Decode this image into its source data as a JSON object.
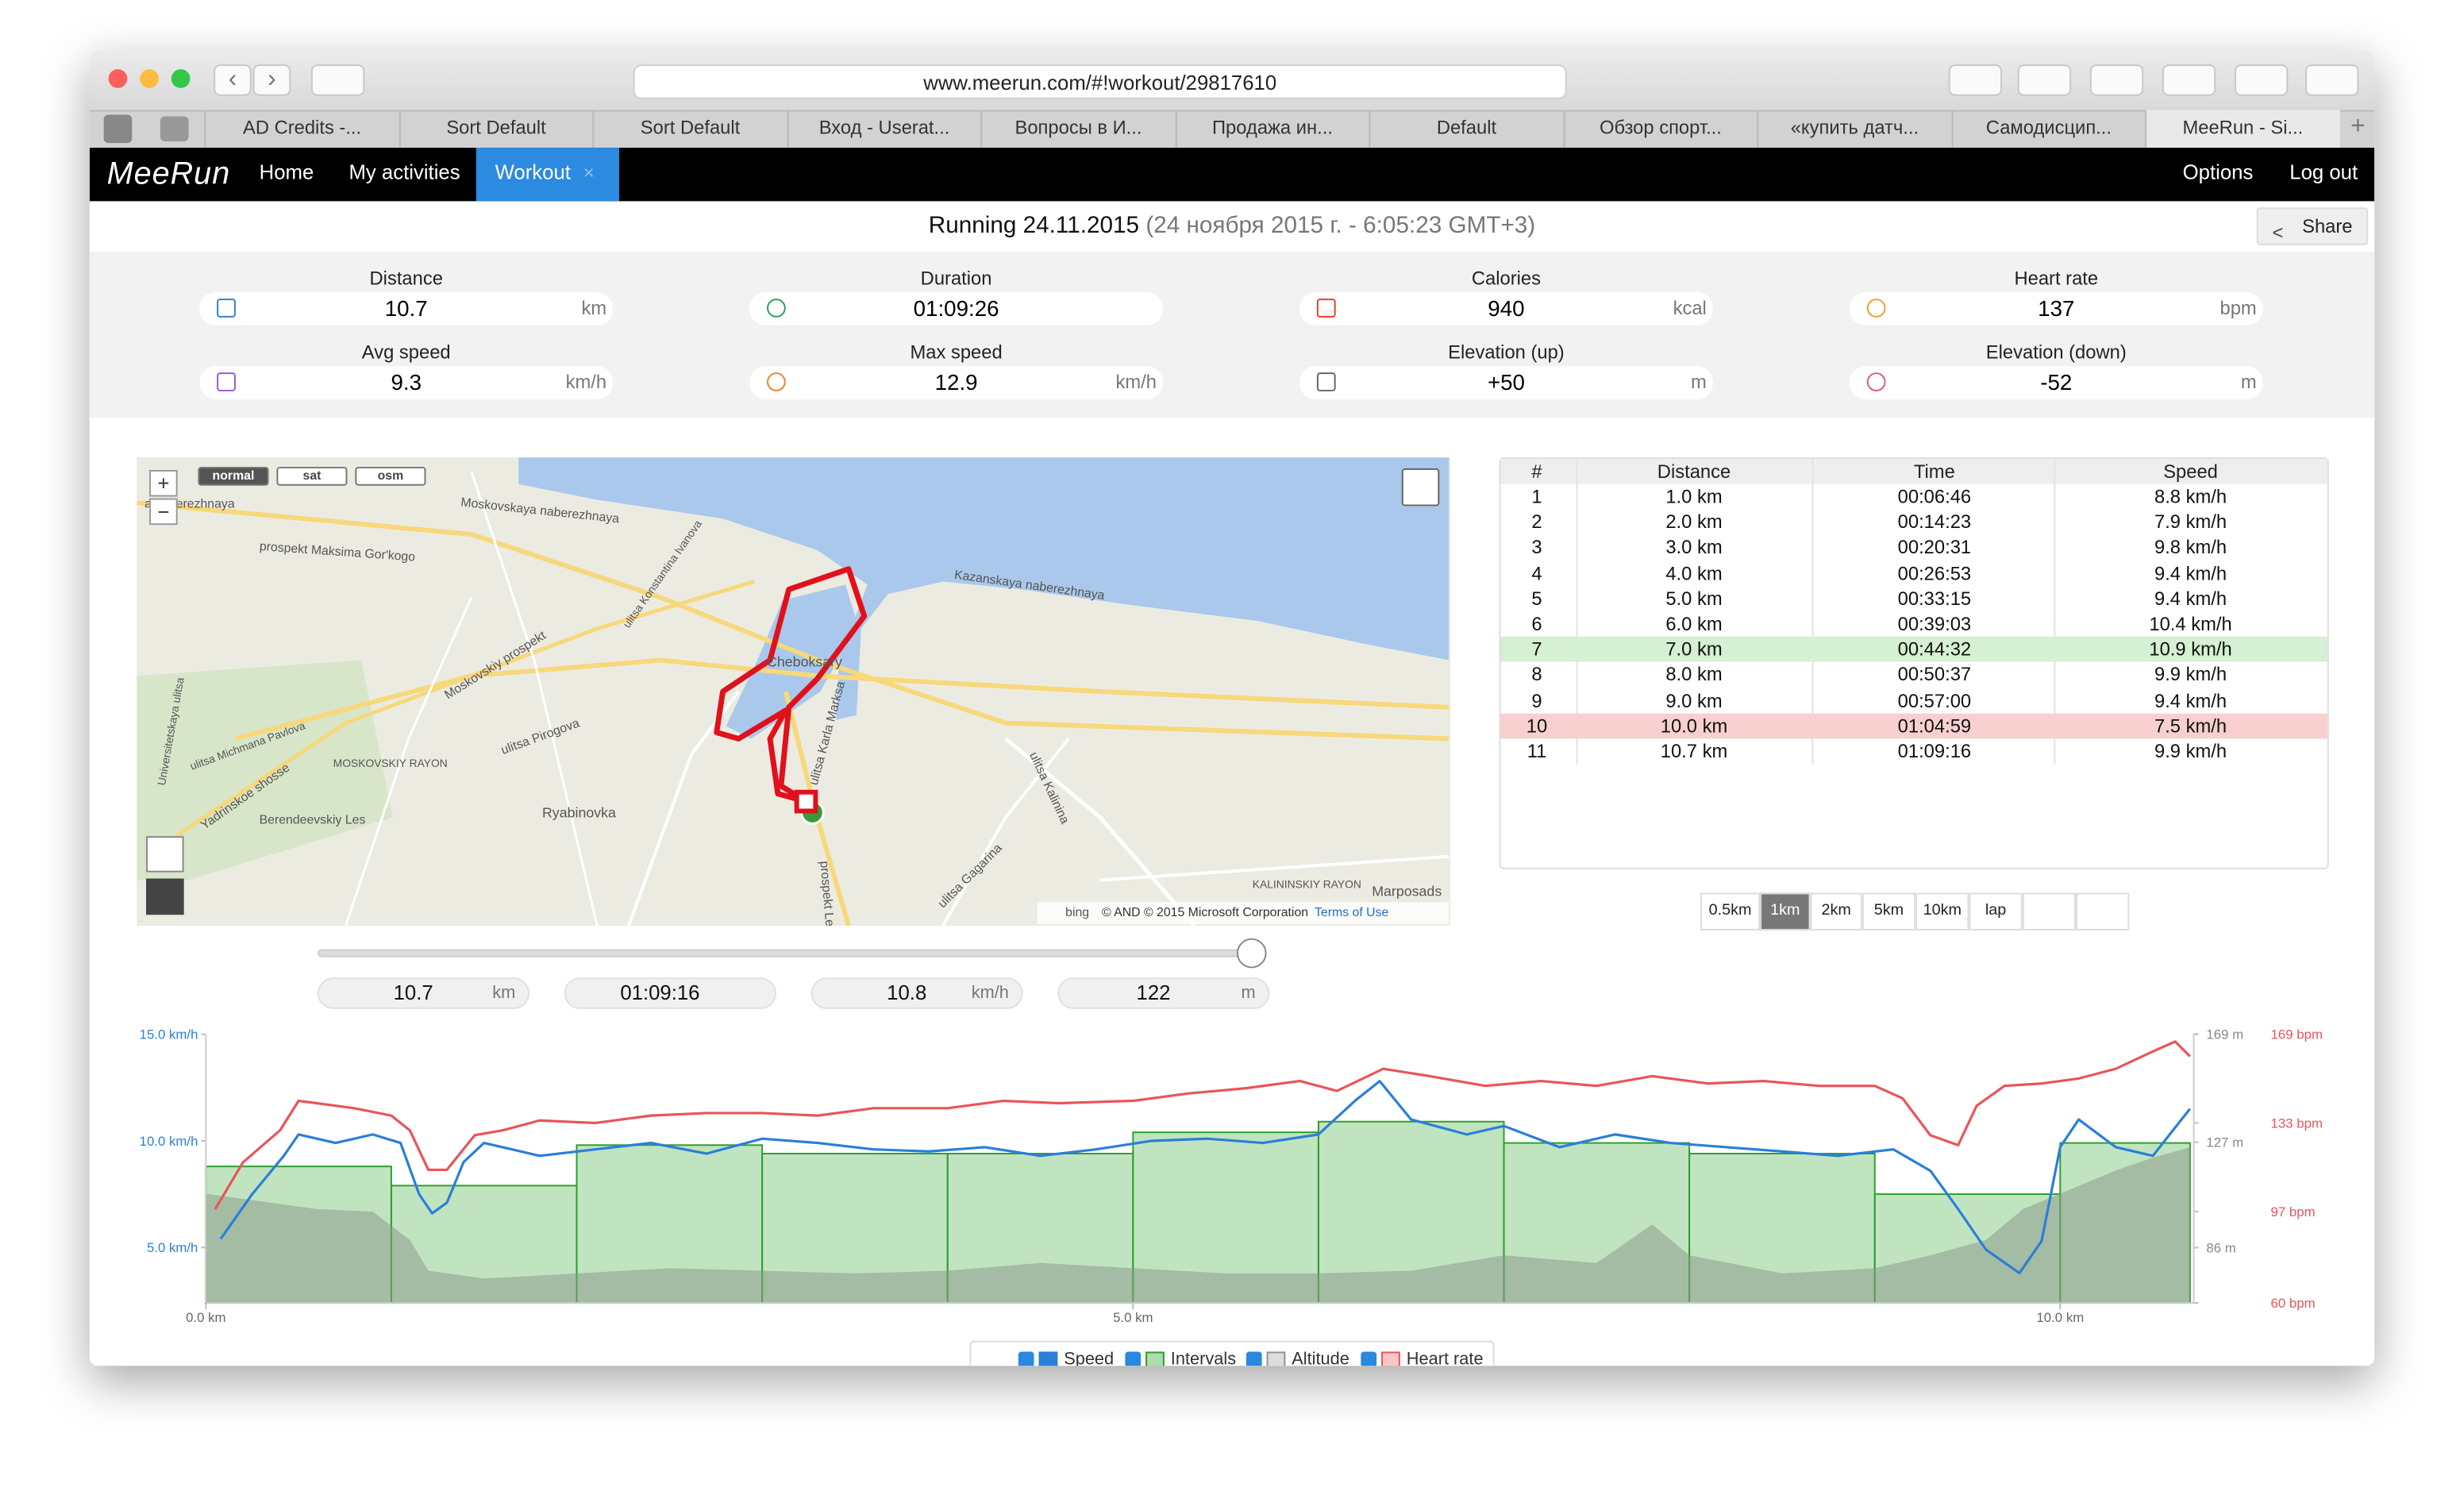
{
  "browser": {
    "url": "www.meerun.com/#!workout/29817610",
    "tabs": [
      "AD Credits -...",
      "Sort Default",
      "Sort Default",
      "Вход - Userat...",
      "Вопросы в И...",
      "Продажа ин...",
      "Default",
      "Обзор спорт...",
      "«купить датч...",
      "Самодисцип...",
      "MeeRun - Si..."
    ]
  },
  "nav": {
    "logo": "MeeRun",
    "items": [
      "Home",
      "My activities",
      "Workout"
    ],
    "right": [
      "Options",
      "Log out"
    ]
  },
  "header": {
    "title": "Running 24.11.2015",
    "subtitle": "(24 ноября 2015 г. - 6:05:23 GMT+3)",
    "share": "Share"
  },
  "stats": [
    {
      "label": "Distance",
      "value": "10.7",
      "unit": "km",
      "color": "#3a7fd0"
    },
    {
      "label": "Duration",
      "value": "01:09:26",
      "unit": "",
      "color": "#2aa05a"
    },
    {
      "label": "Calories",
      "value": "940",
      "unit": "kcal",
      "color": "#e8412c"
    },
    {
      "label": "Heart rate",
      "value": "137",
      "unit": "bpm",
      "color": "#f0a030"
    },
    {
      "label": "Avg speed",
      "value": "9.3",
      "unit": "km/h",
      "color": "#9b59d0"
    },
    {
      "label": "Max speed",
      "value": "12.9",
      "unit": "km/h",
      "color": "#e8872c"
    },
    {
      "label": "Elevation (up)",
      "value": "+50",
      "unit": "m",
      "color": "#666666"
    },
    {
      "label": "Elevation (down)",
      "value": "-52",
      "unit": "m",
      "color": "#e05a8a"
    }
  ],
  "map": {
    "modes": [
      "normal",
      "sat",
      "osm"
    ],
    "zoom": [
      "+",
      "−"
    ],
    "labels": [
      "a naberezhnaya",
      "Moskovskaya naberezhnaya",
      "prospekt Maksima Gor'kogo",
      "Moskovskiy prospekt",
      "ulitsa Pirogova",
      "Cheboksary",
      "ulitsa Karla Marksa",
      "Kazanskaya naberezhnaya",
      "Yadrinskoe shosse",
      "MOSKOVSKIY RAYON",
      "Berendeevskiy Les",
      "Ryabinovka",
      "ulitsa Kalinina",
      "ulitsa Gagarina",
      "prospekt Lenina",
      "KALININSKIY RAYON",
      "Marposads",
      "ulitsa Michmana Pavlova",
      "Universitetskaya ulitsa",
      "ulitsa Konstantina Ivanova"
    ],
    "attribution": "© AND © 2015 Microsoft Corporation",
    "terms": "Terms of Use",
    "provider": "bing"
  },
  "laps": {
    "headers": [
      "#",
      "Distance",
      "Time",
      "Speed"
    ],
    "rows": [
      [
        "1",
        "1.0 km",
        "00:06:46",
        "8.8 km/h"
      ],
      [
        "2",
        "2.0 km",
        "00:14:23",
        "7.9 km/h"
      ],
      [
        "3",
        "3.0 km",
        "00:20:31",
        "9.8 km/h"
      ],
      [
        "4",
        "4.0 km",
        "00:26:53",
        "9.4 km/h"
      ],
      [
        "5",
        "5.0 km",
        "00:33:15",
        "9.4 km/h"
      ],
      [
        "6",
        "6.0 km",
        "00:39:03",
        "10.4 km/h"
      ],
      [
        "7",
        "7.0 km",
        "00:44:32",
        "10.9 km/h"
      ],
      [
        "8",
        "8.0 km",
        "00:50:37",
        "9.9 km/h"
      ],
      [
        "9",
        "9.0 km",
        "00:57:00",
        "9.4 km/h"
      ],
      [
        "10",
        "10.0 km",
        "01:04:59",
        "7.5 km/h"
      ],
      [
        "11",
        "10.7 km",
        "01:09:16",
        "9.9 km/h"
      ]
    ],
    "highlight_rows": [
      {
        "row": 6,
        "color": "#d5f0d2"
      },
      {
        "row": 9,
        "color": "#f8d0d0"
      }
    ]
  },
  "split_buttons": [
    "0.5km",
    "1km",
    "2km",
    "5km",
    "10km",
    "lap"
  ],
  "cursor": [
    {
      "value": "10.7",
      "unit": "km"
    },
    {
      "value": "01:09:16",
      "unit": ""
    },
    {
      "value": "10.8",
      "unit": "km/h"
    },
    {
      "value": "122",
      "unit": "m"
    }
  ],
  "chart_data": {
    "type": "line",
    "xlim": [
      0,
      10.72
    ],
    "xticks": [
      {
        "value": 0,
        "label": "0.0 km"
      },
      {
        "value": 5,
        "label": "5.0 km"
      },
      {
        "value": 10,
        "label": "10.0 km"
      }
    ],
    "ylim": [
      2.4,
      15
    ],
    "yticks": [
      {
        "value": 5,
        "label": "5.0 km/h"
      },
      {
        "value": 10,
        "label": "10.0 km/h"
      },
      {
        "value": 15,
        "label": "15.0 km/h"
      }
    ],
    "y2lim": [
      64.5,
      169
    ],
    "y2ticks": [
      {
        "value": 86,
        "label": "86 m"
      },
      {
        "value": 127,
        "label": "127 m"
      },
      {
        "value": 169,
        "label": "169 m"
      }
    ],
    "y3lim": [
      60,
      169
    ],
    "y3ticks": [
      {
        "value": 60,
        "label": "60 bpm"
      },
      {
        "value": 97,
        "label": "97 bpm"
      },
      {
        "value": 133,
        "label": "133 bpm"
      },
      {
        "value": 169,
        "label": "169 bpm"
      }
    ],
    "series": [
      {
        "name": "Speed",
        "type": "line",
        "color": "#2a7fd8",
        "axis": "y",
        "x": [
          0.08,
          0.25,
          0.42,
          0.5,
          0.7,
          0.9,
          1.05,
          1.15,
          1.22,
          1.3,
          1.39,
          1.5,
          1.8,
          2.1,
          2.4,
          2.7,
          3.0,
          3.3,
          3.6,
          3.9,
          4.2,
          4.5,
          4.8,
          5.1,
          5.4,
          5.7,
          6.0,
          6.2,
          6.33,
          6.5,
          6.8,
          7.0,
          7.3,
          7.6,
          7.9,
          8.2,
          8.5,
          8.8,
          9.1,
          9.3,
          9.45,
          9.6,
          9.78,
          9.9,
          10.0,
          10.1,
          10.3,
          10.5,
          10.6,
          10.7
        ],
        "values": [
          5.4,
          7.5,
          9.3,
          10.3,
          9.9,
          10.3,
          9.9,
          7.5,
          6.6,
          7.1,
          9.0,
          9.9,
          9.3,
          9.6,
          9.9,
          9.4,
          10.1,
          9.9,
          9.6,
          9.5,
          9.7,
          9.3,
          9.6,
          10.0,
          10.1,
          9.9,
          10.3,
          11.9,
          12.8,
          11.0,
          10.3,
          10.7,
          9.7,
          10.3,
          9.9,
          9.7,
          9.5,
          9.3,
          9.6,
          8.6,
          6.8,
          4.9,
          3.8,
          5.3,
          9.7,
          11.0,
          9.7,
          9.3,
          10.4,
          11.5
        ]
      },
      {
        "name": "Intervals",
        "type": "bar",
        "color": "#2e9e2e",
        "axis": "y",
        "bins": [
          0,
          1,
          2,
          3,
          4,
          5,
          6,
          7,
          8,
          9,
          10,
          10.7
        ],
        "values": [
          8.8,
          7.9,
          9.8,
          9.4,
          9.4,
          10.4,
          10.9,
          9.9,
          9.4,
          7.5,
          9.9
        ]
      },
      {
        "name": "Altitude",
        "type": "area",
        "color": "#8a9a8a",
        "axis": "y2",
        "x": [
          0,
          0.3,
          0.6,
          0.9,
          1.1,
          1.2,
          1.5,
          2.0,
          2.5,
          3.0,
          3.5,
          4.0,
          4.5,
          5.0,
          5.5,
          6.0,
          6.5,
          7.0,
          7.5,
          7.8,
          8.0,
          8.5,
          9.0,
          9.3,
          9.6,
          9.8,
          10.0,
          10.3,
          10.5,
          10.7
        ],
        "values": [
          107,
          104,
          101,
          100,
          89,
          77,
          74,
          76,
          78,
          77,
          76,
          77,
          80,
          78,
          76,
          76,
          77,
          83,
          80,
          95,
          83,
          76,
          78,
          83,
          89,
          101,
          107,
          116,
          121,
          125
        ]
      },
      {
        "name": "Heart rate",
        "type": "line",
        "color": "#e8555a",
        "axis": "y3",
        "x": [
          0.05,
          0.2,
          0.4,
          0.5,
          0.8,
          1.0,
          1.1,
          1.2,
          1.3,
          1.45,
          1.6,
          1.8,
          2.1,
          2.4,
          2.7,
          3.0,
          3.3,
          3.6,
          4.0,
          4.3,
          4.6,
          5.0,
          5.3,
          5.6,
          5.9,
          6.1,
          6.35,
          6.6,
          6.9,
          7.2,
          7.5,
          7.8,
          8.1,
          8.4,
          8.7,
          9.0,
          9.15,
          9.3,
          9.45,
          9.55,
          9.7,
          9.9,
          10.1,
          10.3,
          10.5,
          10.62,
          10.7
        ],
        "values": [
          98,
          117,
          130,
          142,
          139,
          136,
          130,
          114,
          114,
          128,
          130,
          134,
          133,
          136,
          137,
          137,
          136,
          139,
          139,
          142,
          141,
          142,
          145,
          147,
          150,
          146,
          155,
          152,
          148,
          150,
          148,
          152,
          149,
          150,
          148,
          148,
          143,
          128,
          124,
          140,
          148,
          149,
          151,
          155,
          162,
          166,
          160
        ]
      }
    ]
  }
}
